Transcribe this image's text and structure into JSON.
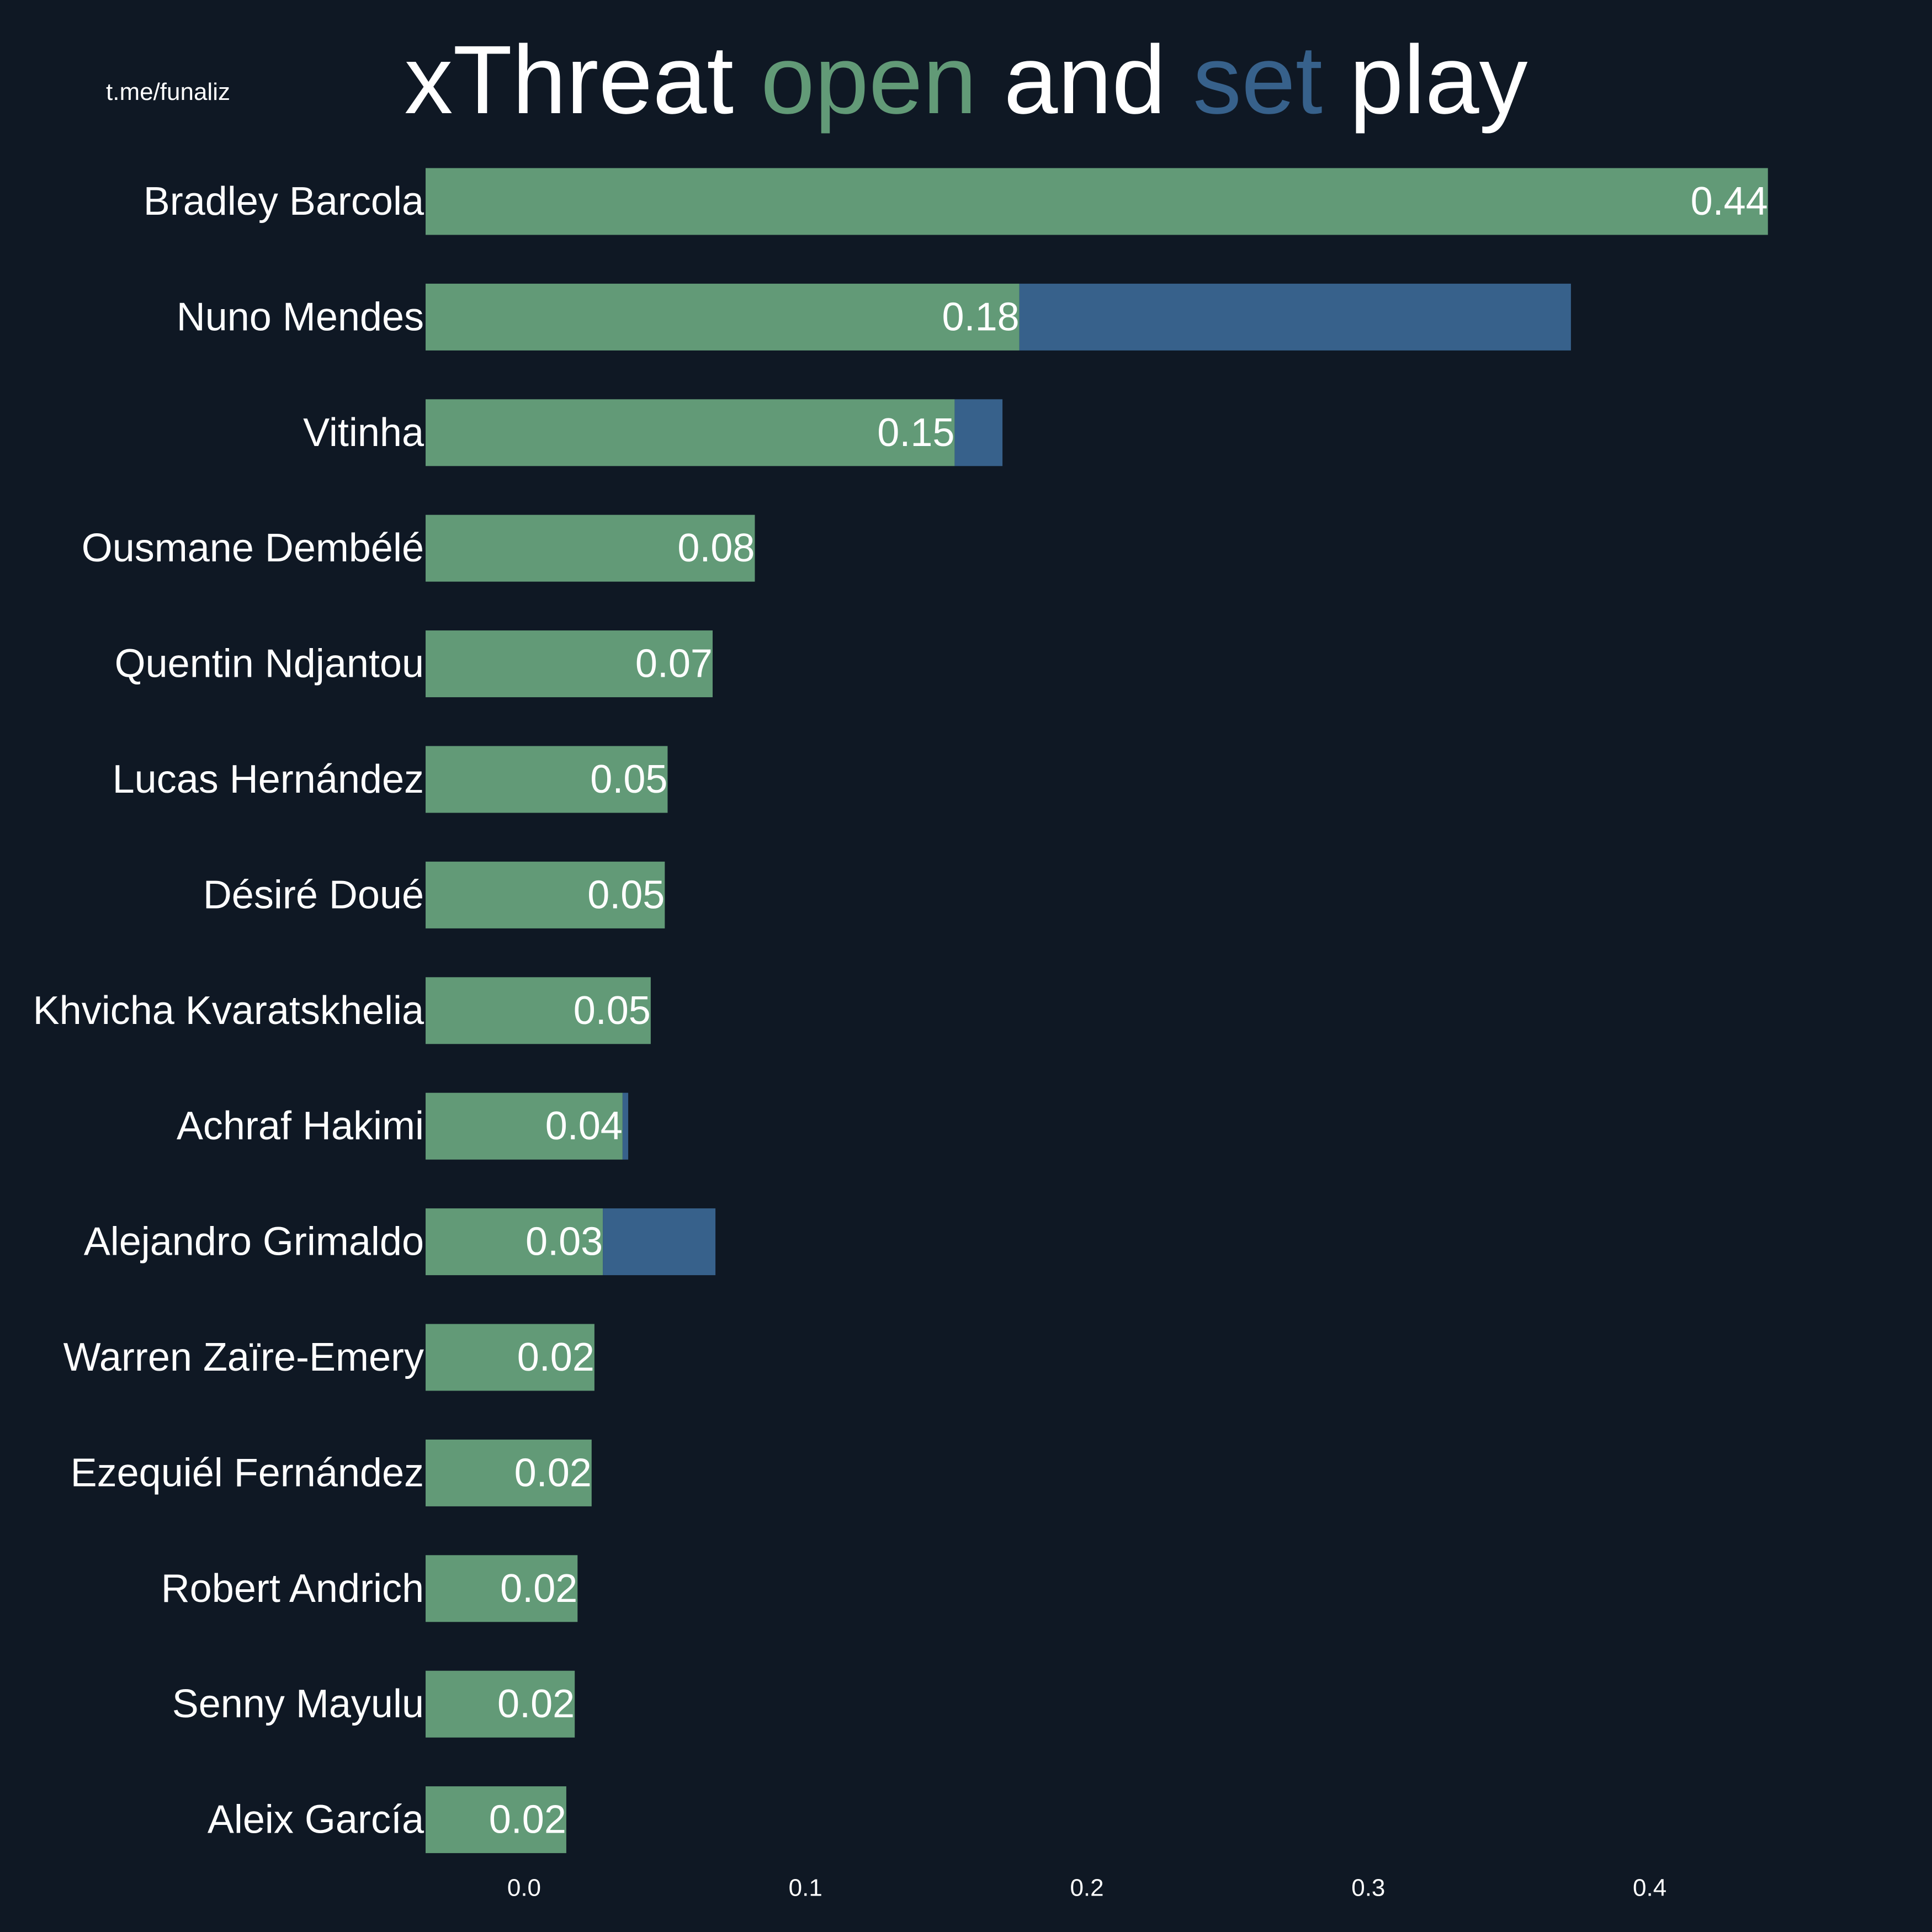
{
  "watermark": "t.me/funaliz",
  "title_parts": {
    "prefix": "xThreat ",
    "open_word": "open",
    "middle": " and ",
    "set_word": "set",
    "suffix": " play"
  },
  "colors": {
    "background": "#0f1824",
    "open_play": "#629a77",
    "set_play": "#37618b",
    "text": "#ffffff"
  },
  "chart_data": {
    "type": "bar",
    "orientation": "horizontal",
    "stacked": true,
    "title": "xThreat open and set play",
    "xlabel": "",
    "ylabel": "",
    "xlim": [
      -0.035,
      0.465
    ],
    "xticks": [
      0.0,
      0.1,
      0.2,
      0.3,
      0.4
    ],
    "xtick_labels": [
      "0.0",
      "0.1",
      "0.2",
      "0.3",
      "0.4"
    ],
    "grid": false,
    "categories": [
      "Bradley Barcola",
      "Nuno Mendes",
      "Vitinha",
      "Ousmane Dembélé",
      "Quentin Ndjantou",
      "Lucas Hernández",
      "Désiré Doué",
      "Khvicha Kvaratskhelia",
      "Achraf Hakimi",
      "Alejandro Grimaldo",
      "Warren Zaïre-Emery",
      "Ezequiél Fernández",
      "Robert Andrich",
      "Senny Mayulu",
      "Aleix García"
    ],
    "series": [
      {
        "name": "open",
        "color": "#629a77",
        "values": [
          0.442,
          0.176,
          0.153,
          0.082,
          0.067,
          0.051,
          0.05,
          0.045,
          0.035,
          0.028,
          0.025,
          0.024,
          0.019,
          0.018,
          0.015
        ]
      },
      {
        "name": "set",
        "color": "#37618b",
        "values": [
          0.0,
          0.196,
          0.017,
          0.0,
          0.0,
          0.0,
          0.0,
          0.0,
          0.002,
          0.04,
          0.0,
          0.0,
          0.0,
          0.0,
          0.0
        ]
      }
    ],
    "data_labels": [
      "0.44",
      "0.18",
      "0.15",
      "0.08",
      "0.07",
      "0.05",
      "0.05",
      "0.05",
      "0.04",
      "0.03",
      "0.02",
      "0.02",
      "0.02",
      "0.02",
      "0.02"
    ]
  }
}
